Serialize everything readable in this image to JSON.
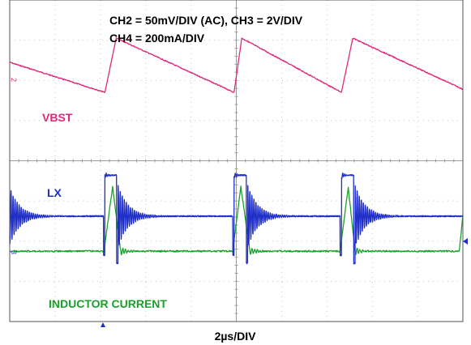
{
  "chart_data": {
    "type": "line",
    "title": "",
    "settings_line1": "CH2 = 50mV/DIV (AC), CH3 = 2V/DIV",
    "settings_line2": "CH4 = 200mA/DIV",
    "xlabel": "2µs/DIV",
    "grid": true,
    "divisions": {
      "x": 10,
      "y": 8
    },
    "switching_period_div": 2.83,
    "channel_markers": [
      {
        "channel": "CH2",
        "text": "2",
        "marker": "2-marker"
      },
      {
        "channel": "CH3/CH4",
        "text": "3",
        "marker": "3-marker"
      }
    ],
    "series": [
      {
        "name": "VBST",
        "channel": "CH2",
        "color": "#e0287a",
        "shape": "sawtooth",
        "start_level_div": 1.55,
        "peak_level_div": 0.95,
        "valley_level_div": 2.3,
        "peak_times_div": [
          2.35,
          5.12,
          7.57
        ],
        "valley_times_div": [
          2.1,
          4.95,
          7.32
        ]
      },
      {
        "name": "LX",
        "channel": "CH3",
        "color": "#1f2fc8",
        "shape": "switching",
        "low_level_div": 5.38,
        "high_level_div": 4.36,
        "ring_amplitude_div": 0.9,
        "pulse_starts_div": [
          2.1,
          4.95,
          7.32
        ],
        "pulse_widths_div": [
          0.26,
          0.27,
          0.27
        ]
      },
      {
        "name": "INDUCTOR CURRENT",
        "channel": "CH4",
        "color": "#1aa12a",
        "shape": "triangle",
        "base_level_div": 6.25,
        "peak_level_div": 4.65,
        "peak_times_div": [
          2.27,
          5.1,
          7.47
        ],
        "pulse_starts_div": [
          2.08,
          4.92,
          7.29
        ],
        "pulse_ends_div": [
          2.45,
          5.3,
          7.62
        ]
      }
    ]
  }
}
